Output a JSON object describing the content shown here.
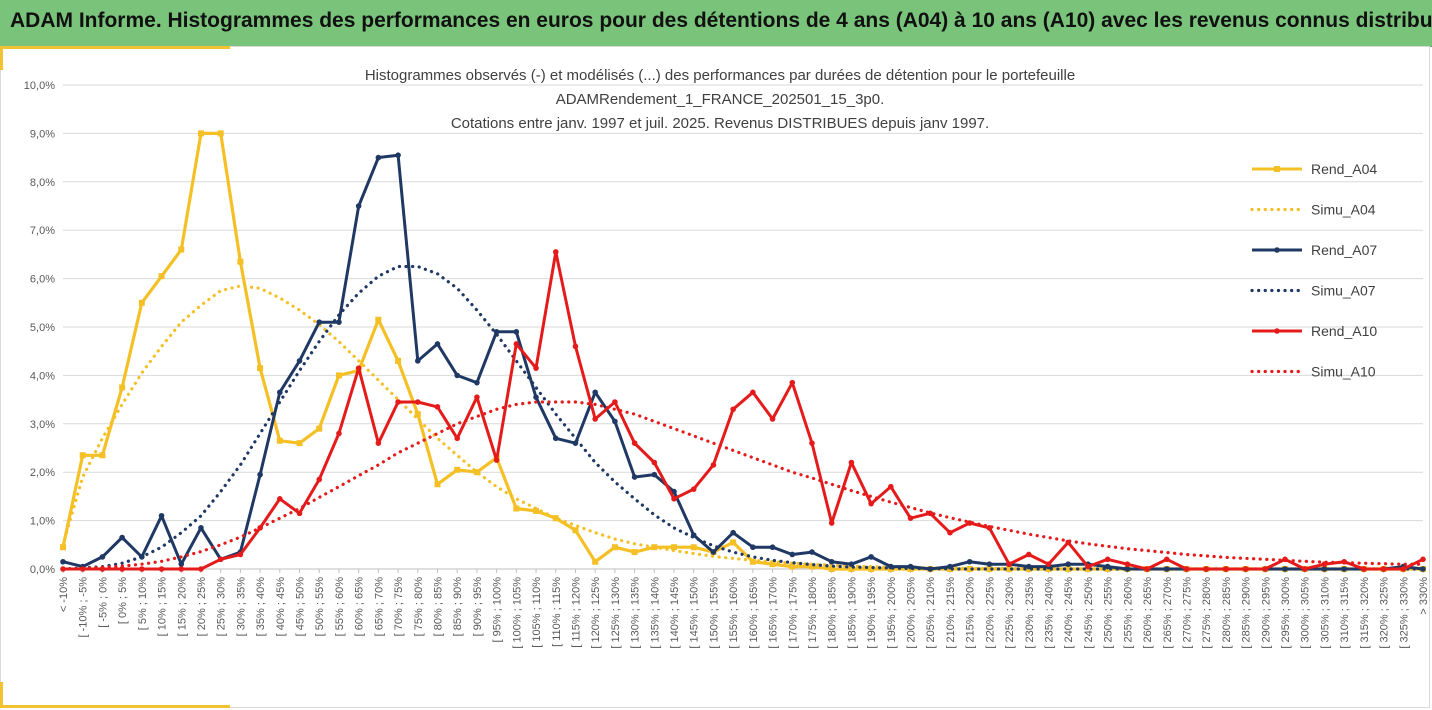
{
  "header": {
    "title": "ADAM Informe. Histogrammes des performances en euros pour des détentions de 4 ans (A04) à 10 ans (A10) avec les revenus connus distribués"
  },
  "chart_data": {
    "type": "line",
    "title": [
      "Histogrammes observés (-) et modélisés (...) des performances par durées de détention pour le portefeuille",
      "ADAMRendement_1_FRANCE_202501_15_3p0.",
      "Cotations entre janv. 1997 et juil. 2025. Revenus DISTRIBUES depuis janv 1997."
    ],
    "xlabel": "",
    "ylabel": "",
    "ylim": [
      0,
      10
    ],
    "yticks": [
      "0,0%",
      "1,0%",
      "2,0%",
      "3,0%",
      "4,0%",
      "5,0%",
      "6,0%",
      "7,0%",
      "8,0%",
      "9,0%",
      "10,0%"
    ],
    "grid": true,
    "legend_position": "right",
    "categories": [
      "< -10%",
      "[ -10% ; -5%",
      "[ -5% ; 0%",
      "[ 0% ; 5%",
      "[ 5% ; 10%",
      "[ 10% ; 15%",
      "[ 15% ; 20%",
      "[ 20% ; 25%",
      "[ 25% ; 30%",
      "[ 30% ; 35%",
      "[ 35% ; 40%",
      "[ 40% ; 45%",
      "[ 45% ; 50%",
      "[ 50% ; 55%",
      "[ 55% ; 60%",
      "[ 60% ; 65%",
      "[ 65% ; 70%",
      "[ 70% ; 75%",
      "[ 75% ; 80%",
      "[ 80% ; 85%",
      "[ 85% ; 90%",
      "[ 90% ; 95%",
      "[ 95% ; 100%",
      "[ 100% ; 105%",
      "[ 105% ; 110%",
      "[ 110% ; 115%",
      "[ 115% ; 120%",
      "[ 120% ; 125%",
      "[ 125% ; 130%",
      "[ 130% ; 135%",
      "[ 135% ; 140%",
      "[ 140% ; 145%",
      "[ 145% ; 150%",
      "[ 150% ; 155%",
      "[ 155% ; 160%",
      "[ 160% ; 165%",
      "[ 165% ; 170%",
      "[ 170% ; 175%",
      "[ 175% ; 180%",
      "[ 180% ; 185%",
      "[ 185% ; 190%",
      "[ 190% ; 195%",
      "[ 195% ; 200%",
      "[ 200% ; 205%",
      "[ 205% ; 210%",
      "[ 210% ; 215%",
      "[ 215% ; 220%",
      "[ 220% ; 225%",
      "[ 225% ; 230%",
      "[ 230% ; 235%",
      "[ 235% ; 240%",
      "[ 240% ; 245%",
      "[ 245% ; 250%",
      "[ 250% ; 255%",
      "[ 255% ; 260%",
      "[ 260% ; 265%",
      "[ 265% ; 270%",
      "[ 270% ; 275%",
      "[ 275% ; 280%",
      "[ 280% ; 285%",
      "[ 285% ; 290%",
      "[ 290% ; 295%",
      "[ 295% ; 300%",
      "[ 300% ; 305%",
      "[ 305% ; 310%",
      "[ 310% ; 315%",
      "[ 315% ; 320%",
      "[ 320% ; 325%",
      "[ 325% ; 330%",
      "> 330%"
    ],
    "series": [
      {
        "name": "Rend_A04",
        "style": "solid",
        "marker": "square",
        "color": "#f5c025",
        "values": [
          0.45,
          2.35,
          2.35,
          3.75,
          5.5,
          6.05,
          6.6,
          9.0,
          9.0,
          6.35,
          4.15,
          2.65,
          2.6,
          2.9,
          4.0,
          4.1,
          5.15,
          4.3,
          3.2,
          1.75,
          2.05,
          2.0,
          2.3,
          1.25,
          1.2,
          1.05,
          0.8,
          0.15,
          0.45,
          0.35,
          0.45,
          0.45,
          0.45,
          0.35,
          0.55,
          0.15,
          0.1,
          0.05,
          0.05,
          0.0,
          0.0,
          0.0,
          0.0,
          0.0,
          0.0,
          0.0,
          0.0,
          0.0,
          0.0,
          0.0,
          0.0,
          0.0,
          0.0,
          0.0,
          0.0,
          0.0,
          0.0,
          0.0,
          0.0,
          0.0,
          0.0,
          0.0,
          0.0,
          0.0,
          0.0,
          0.0,
          0.0,
          0.0,
          0.0,
          0.0
        ]
      },
      {
        "name": "Simu_A04",
        "style": "dotted",
        "color": "#f5c025",
        "values": [
          0.5,
          1.9,
          2.7,
          3.4,
          4.05,
          4.6,
          5.1,
          5.45,
          5.75,
          5.85,
          5.8,
          5.6,
          5.35,
          5.05,
          4.7,
          4.3,
          3.9,
          3.5,
          3.1,
          2.7,
          2.35,
          2.0,
          1.7,
          1.45,
          1.25,
          1.05,
          0.9,
          0.75,
          0.62,
          0.52,
          0.45,
          0.38,
          0.32,
          0.26,
          0.22,
          0.18,
          0.15,
          0.12,
          0.1,
          0.08,
          0.06,
          0.05,
          0.04,
          0.03,
          0.02,
          0.02,
          0.01,
          0.01,
          0.01,
          0.0,
          0.0,
          0.0,
          0.0,
          0.0,
          0.0,
          0.0,
          0.0,
          0.0,
          0.0,
          0.0,
          0.0,
          0.0,
          0.0,
          0.0,
          0.0,
          0.0,
          0.0,
          0.0,
          0.0,
          0.0
        ]
      },
      {
        "name": "Rend_A07",
        "style": "solid",
        "marker": "circle",
        "color": "#1f3864",
        "values": [
          0.15,
          0.05,
          0.25,
          0.65,
          0.25,
          1.1,
          0.1,
          0.85,
          0.2,
          0.35,
          1.95,
          3.65,
          4.3,
          5.1,
          5.1,
          7.5,
          8.5,
          8.55,
          4.3,
          4.65,
          4.0,
          3.85,
          4.9,
          4.9,
          3.55,
          2.7,
          2.6,
          3.65,
          3.05,
          1.9,
          1.95,
          1.6,
          0.7,
          0.35,
          0.75,
          0.45,
          0.45,
          0.3,
          0.35,
          0.15,
          0.1,
          0.25,
          0.05,
          0.05,
          0.0,
          0.05,
          0.15,
          0.1,
          0.1,
          0.05,
          0.05,
          0.1,
          0.1,
          0.05,
          0.0,
          0.0,
          0.0,
          0.0,
          0.0,
          0.0,
          0.0,
          0.0,
          0.0,
          0.0,
          0.0,
          0.0,
          0.0,
          0.0,
          0.05,
          0.0
        ]
      },
      {
        "name": "Simu_A07",
        "style": "dotted",
        "color": "#1f3864",
        "values": [
          0.0,
          0.02,
          0.05,
          0.12,
          0.25,
          0.45,
          0.75,
          1.1,
          1.6,
          2.15,
          2.8,
          3.45,
          4.1,
          4.7,
          5.25,
          5.7,
          6.05,
          6.25,
          6.25,
          6.1,
          5.8,
          5.35,
          4.85,
          4.3,
          3.75,
          3.2,
          2.7,
          2.2,
          1.8,
          1.45,
          1.12,
          0.85,
          0.65,
          0.48,
          0.35,
          0.25,
          0.18,
          0.13,
          0.09,
          0.06,
          0.04,
          0.03,
          0.02,
          0.01,
          0.01,
          0.0,
          0.0,
          0.0,
          0.0,
          0.0,
          0.0,
          0.0,
          0.0,
          0.0,
          0.0,
          0.0,
          0.0,
          0.0,
          0.0,
          0.0,
          0.0,
          0.0,
          0.0,
          0.0,
          0.0,
          0.0,
          0.0,
          0.0,
          0.0,
          0.0
        ]
      },
      {
        "name": "Rend_A10",
        "style": "solid",
        "marker": "circle",
        "color": "#e51b1b",
        "values": [
          0.0,
          0.0,
          0.0,
          0.0,
          0.0,
          0.0,
          0.0,
          0.0,
          0.2,
          0.3,
          0.85,
          1.45,
          1.15,
          1.85,
          2.8,
          4.15,
          2.6,
          3.45,
          3.45,
          3.35,
          2.7,
          3.55,
          2.25,
          4.65,
          4.15,
          6.55,
          4.6,
          3.1,
          3.45,
          2.6,
          2.2,
          1.45,
          1.65,
          2.15,
          3.3,
          3.65,
          3.1,
          3.85,
          2.6,
          0.95,
          2.2,
          1.35,
          1.7,
          1.05,
          1.15,
          0.75,
          0.95,
          0.85,
          0.1,
          0.3,
          0.1,
          0.55,
          0.05,
          0.2,
          0.1,
          0.0,
          0.2,
          0.0,
          0.0,
          0.0,
          0.0,
          0.0,
          0.2,
          0.0,
          0.1,
          0.15,
          0.0,
          0.0,
          0.0,
          0.2
        ]
      },
      {
        "name": "Simu_A10",
        "style": "dotted",
        "color": "#e51b1b",
        "values": [
          0.0,
          0.01,
          0.03,
          0.06,
          0.1,
          0.16,
          0.25,
          0.36,
          0.5,
          0.66,
          0.85,
          1.05,
          1.25,
          1.48,
          1.7,
          1.93,
          2.15,
          2.4,
          2.6,
          2.8,
          3.0,
          3.15,
          3.3,
          3.4,
          3.45,
          3.45,
          3.45,
          3.4,
          3.3,
          3.2,
          3.05,
          2.9,
          2.75,
          2.6,
          2.45,
          2.3,
          2.15,
          2.0,
          1.88,
          1.75,
          1.62,
          1.5,
          1.38,
          1.27,
          1.16,
          1.06,
          0.97,
          0.88,
          0.8,
          0.72,
          0.65,
          0.58,
          0.52,
          0.47,
          0.42,
          0.38,
          0.34,
          0.3,
          0.27,
          0.24,
          0.22,
          0.2,
          0.18,
          0.16,
          0.14,
          0.13,
          0.12,
          0.11,
          0.1,
          0.1
        ]
      }
    ]
  }
}
